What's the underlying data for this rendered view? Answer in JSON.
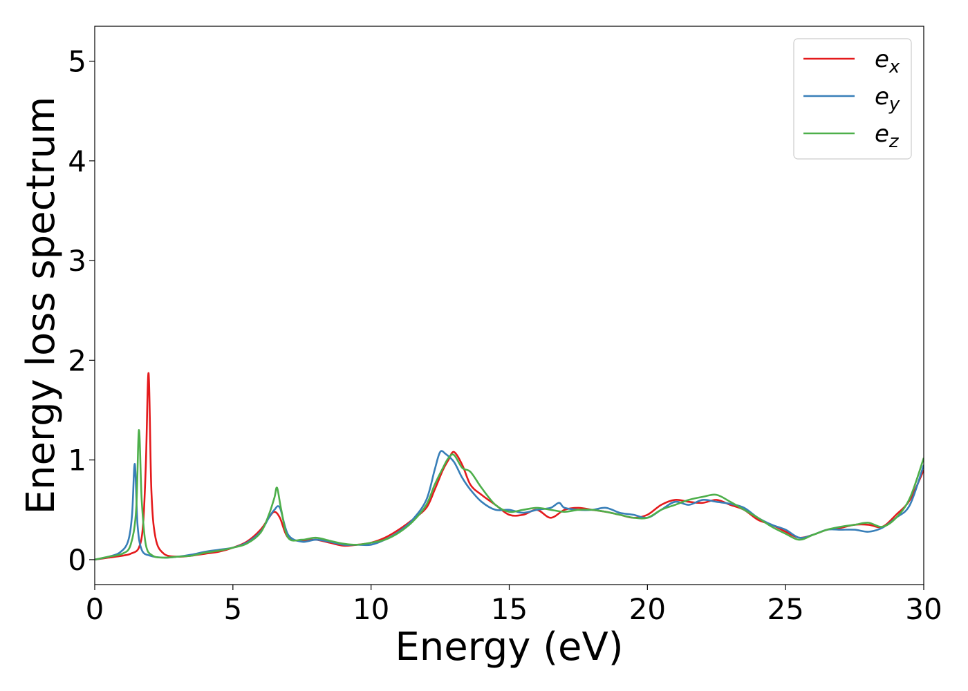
{
  "chart_data": {
    "type": "line",
    "xlabel": "Energy (eV)",
    "ylabel": "Energy loss spectrum",
    "xlim": [
      0,
      30
    ],
    "ylim": [
      -0.25,
      5.35
    ],
    "xticks": [
      0,
      5,
      10,
      15,
      20,
      25,
      30
    ],
    "yticks": [
      0,
      1,
      2,
      3,
      4,
      5
    ],
    "grid": false,
    "legend": {
      "position": "top-right"
    },
    "series": [
      {
        "name": "e_x",
        "label_base": "e",
        "label_sub": "x",
        "color": "#e41a1c",
        "x": [
          0,
          0.5,
          1.0,
          1.3,
          1.6,
          1.75,
          1.85,
          1.95,
          2.05,
          2.2,
          2.5,
          3.0,
          3.5,
          4.0,
          4.5,
          5.0,
          5.5,
          6.0,
          6.3,
          6.5,
          6.7,
          7.0,
          7.5,
          8.0,
          8.5,
          9.0,
          9.5,
          10.0,
          10.5,
          11.0,
          11.5,
          12.0,
          12.3,
          12.6,
          12.8,
          13.0,
          13.3,
          13.6,
          14.0,
          14.5,
          15.0,
          15.5,
          16.0,
          16.5,
          17.0,
          17.5,
          18.0,
          18.5,
          19.0,
          19.5,
          20.0,
          20.5,
          21.0,
          21.5,
          22.0,
          22.5,
          23.0,
          23.5,
          24.0,
          24.5,
          25.0,
          25.5,
          26.0,
          26.5,
          27.0,
          27.5,
          28.0,
          28.5,
          29.0,
          29.5,
          30.0
        ],
        "y": [
          0,
          0.02,
          0.04,
          0.06,
          0.12,
          0.35,
          0.95,
          1.87,
          0.7,
          0.22,
          0.06,
          0.03,
          0.04,
          0.06,
          0.08,
          0.12,
          0.18,
          0.3,
          0.42,
          0.48,
          0.42,
          0.22,
          0.19,
          0.2,
          0.17,
          0.14,
          0.15,
          0.17,
          0.22,
          0.3,
          0.4,
          0.52,
          0.7,
          0.9,
          1.0,
          1.08,
          0.95,
          0.75,
          0.65,
          0.55,
          0.45,
          0.45,
          0.5,
          0.42,
          0.5,
          0.52,
          0.5,
          0.48,
          0.45,
          0.42,
          0.45,
          0.55,
          0.6,
          0.58,
          0.57,
          0.6,
          0.55,
          0.5,
          0.4,
          0.35,
          0.28,
          0.22,
          0.25,
          0.3,
          0.32,
          0.35,
          0.35,
          0.33,
          0.45,
          0.6,
          0.9
        ]
      },
      {
        "name": "e_y",
        "label_base": "e",
        "label_sub": "y",
        "color": "#377eb8",
        "x": [
          0,
          0.5,
          0.9,
          1.2,
          1.35,
          1.45,
          1.55,
          1.7,
          2.0,
          2.5,
          3.0,
          3.5,
          4.0,
          4.5,
          5.0,
          5.5,
          6.0,
          6.3,
          6.5,
          6.7,
          7.0,
          7.5,
          8.0,
          8.5,
          9.0,
          9.5,
          10.0,
          10.5,
          11.0,
          11.5,
          12.0,
          12.3,
          12.5,
          12.7,
          13.0,
          13.3,
          13.6,
          14.0,
          14.5,
          15.0,
          15.5,
          16.0,
          16.5,
          16.8,
          17.0,
          17.5,
          18.0,
          18.5,
          19.0,
          19.5,
          20.0,
          20.5,
          21.0,
          21.5,
          22.0,
          22.5,
          23.0,
          23.5,
          24.0,
          24.5,
          25.0,
          25.5,
          26.0,
          26.5,
          27.0,
          27.5,
          28.0,
          28.5,
          29.0,
          29.5,
          30.0
        ],
        "y": [
          0,
          0.03,
          0.07,
          0.18,
          0.45,
          0.96,
          0.35,
          0.1,
          0.04,
          0.02,
          0.03,
          0.05,
          0.08,
          0.1,
          0.12,
          0.17,
          0.28,
          0.42,
          0.5,
          0.52,
          0.25,
          0.18,
          0.2,
          0.18,
          0.15,
          0.15,
          0.15,
          0.2,
          0.28,
          0.4,
          0.6,
          0.9,
          1.08,
          1.06,
          0.98,
          0.82,
          0.7,
          0.58,
          0.5,
          0.5,
          0.47,
          0.5,
          0.52,
          0.57,
          0.52,
          0.5,
          0.5,
          0.52,
          0.47,
          0.45,
          0.42,
          0.5,
          0.58,
          0.55,
          0.6,
          0.58,
          0.56,
          0.52,
          0.42,
          0.35,
          0.3,
          0.22,
          0.25,
          0.3,
          0.3,
          0.3,
          0.28,
          0.32,
          0.42,
          0.55,
          0.95
        ]
      },
      {
        "name": "e_z",
        "label_base": "e",
        "label_sub": "z",
        "color": "#4daf4a",
        "x": [
          0,
          0.5,
          1.0,
          1.3,
          1.5,
          1.6,
          1.7,
          1.85,
          2.1,
          2.5,
          3.0,
          3.5,
          4.0,
          4.5,
          5.0,
          5.5,
          6.0,
          6.3,
          6.5,
          6.6,
          6.75,
          7.0,
          7.5,
          8.0,
          8.5,
          9.0,
          9.5,
          10.0,
          10.5,
          11.0,
          11.5,
          12.0,
          12.3,
          12.6,
          12.8,
          13.0,
          13.3,
          13.6,
          14.0,
          14.5,
          15.0,
          15.5,
          16.0,
          16.5,
          17.0,
          17.5,
          18.0,
          18.5,
          19.0,
          19.5,
          20.0,
          20.5,
          21.0,
          21.5,
          22.0,
          22.5,
          23.0,
          23.5,
          24.0,
          24.5,
          25.0,
          25.5,
          26.0,
          26.5,
          27.0,
          27.5,
          28.0,
          28.5,
          29.0,
          29.5,
          30.0
        ],
        "y": [
          0,
          0.03,
          0.06,
          0.15,
          0.5,
          1.3,
          0.6,
          0.15,
          0.04,
          0.02,
          0.03,
          0.04,
          0.07,
          0.09,
          0.12,
          0.16,
          0.27,
          0.45,
          0.62,
          0.72,
          0.5,
          0.22,
          0.2,
          0.22,
          0.19,
          0.16,
          0.15,
          0.17,
          0.2,
          0.27,
          0.38,
          0.55,
          0.75,
          0.92,
          1.02,
          1.05,
          0.92,
          0.88,
          0.72,
          0.55,
          0.48,
          0.5,
          0.52,
          0.5,
          0.48,
          0.5,
          0.5,
          0.48,
          0.45,
          0.42,
          0.42,
          0.5,
          0.55,
          0.6,
          0.63,
          0.65,
          0.58,
          0.5,
          0.42,
          0.33,
          0.26,
          0.2,
          0.25,
          0.3,
          0.33,
          0.35,
          0.37,
          0.33,
          0.42,
          0.62,
          1.02
        ]
      }
    ]
  }
}
